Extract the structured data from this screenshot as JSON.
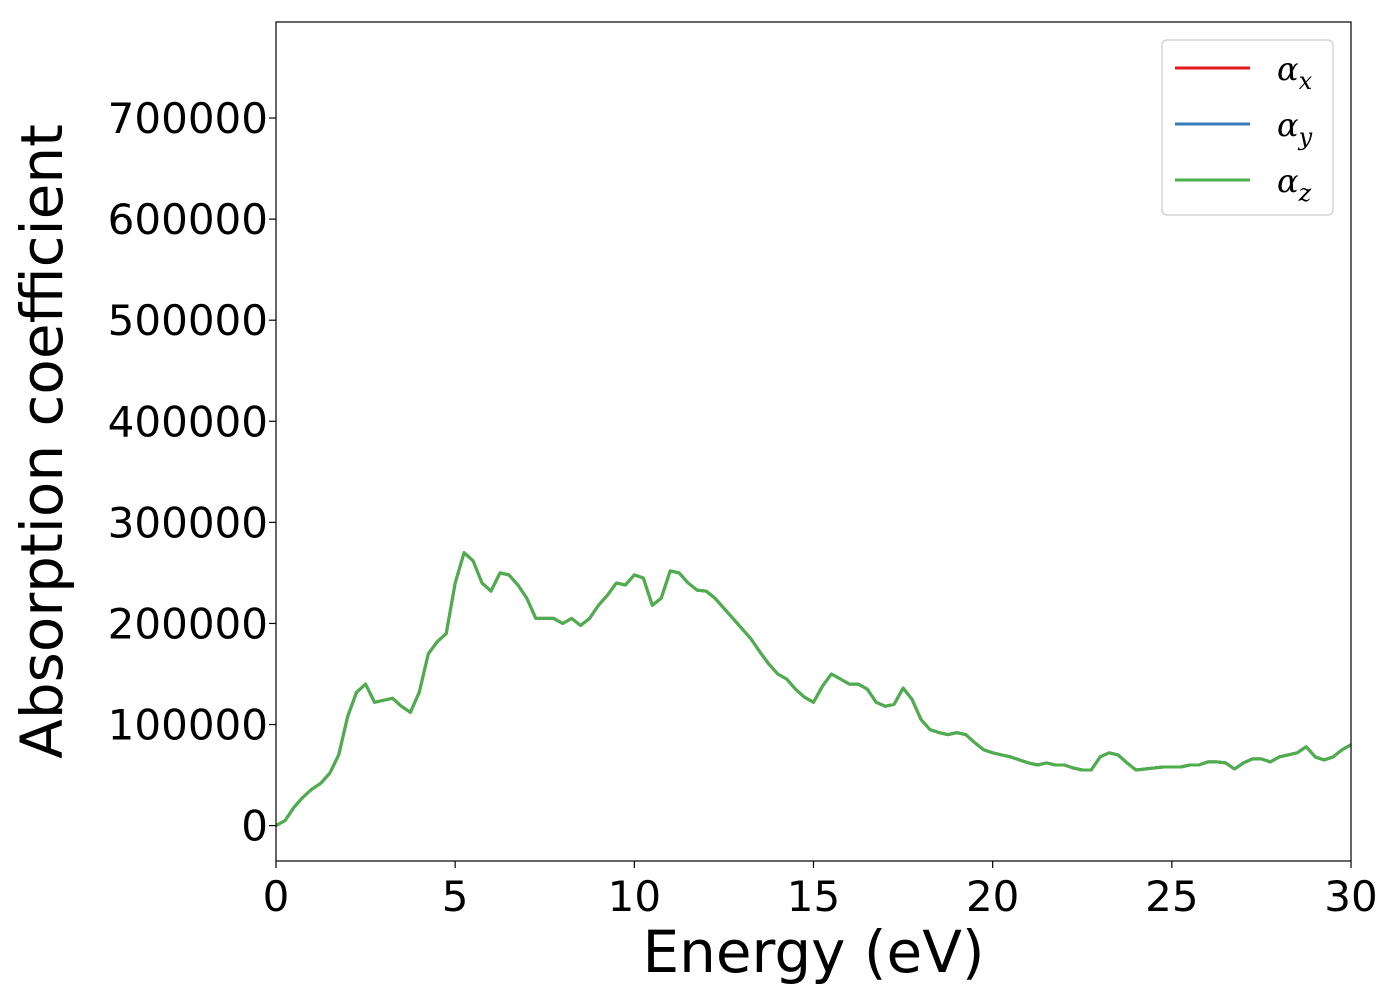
{
  "chart_data": {
    "type": "line",
    "title": "",
    "xlabel": "Energy (eV)",
    "ylabel": "Absorption coefficient",
    "xlim": [
      0,
      30
    ],
    "ylim": [
      -35000,
      795000
    ],
    "xticks": [
      0,
      5,
      10,
      15,
      20,
      25,
      30
    ],
    "yticks": [
      0,
      100000,
      200000,
      300000,
      400000,
      500000,
      600000,
      700000
    ],
    "grid": false,
    "legend_position": "top-right",
    "x": [
      0,
      0.25,
      0.5,
      0.75,
      1.0,
      1.25,
      1.5,
      1.75,
      2.0,
      2.25,
      2.5,
      2.75,
      3.0,
      3.25,
      3.5,
      3.75,
      4.0,
      4.25,
      4.5,
      4.75,
      5.0,
      5.25,
      5.5,
      5.75,
      6.0,
      6.25,
      6.5,
      6.75,
      7.0,
      7.25,
      7.5,
      7.75,
      8.0,
      8.25,
      8.5,
      8.75,
      9.0,
      9.25,
      9.5,
      9.75,
      10.0,
      10.25,
      10.5,
      10.75,
      11.0,
      11.25,
      11.5,
      11.75,
      12.0,
      12.25,
      12.5,
      12.75,
      13.0,
      13.25,
      13.5,
      13.75,
      14.0,
      14.25,
      14.5,
      14.75,
      15.0,
      15.25,
      15.5,
      15.75,
      16.0,
      16.25,
      16.5,
      16.75,
      17.0,
      17.25,
      17.5,
      17.75,
      18.0,
      18.25,
      18.5,
      18.75,
      19.0,
      19.25,
      19.5,
      19.75,
      20.0,
      20.25,
      20.5,
      20.75,
      21.0,
      21.25,
      21.5,
      21.75,
      22.0,
      22.25,
      22.5,
      22.75,
      23.0,
      23.25,
      23.5,
      23.75,
      24.0,
      24.25,
      24.5,
      24.75,
      25.0,
      25.25,
      25.5,
      25.75,
      26.0,
      26.25,
      26.5,
      26.75,
      27.0,
      27.25,
      27.5,
      27.75,
      28.0,
      28.25,
      28.5,
      28.75,
      29.0,
      29.25,
      29.5,
      29.75,
      30.0
    ],
    "series": [
      {
        "name": "α_x",
        "color": "#e41a1c",
        "values": [
          0,
          5000,
          18000,
          28000,
          36000,
          42000,
          52000,
          70000,
          108000,
          132000,
          140000,
          122000,
          124000,
          126000,
          118000,
          112000,
          132000,
          170000,
          182000,
          190000,
          240000,
          270000,
          262000,
          240000,
          232000,
          250000,
          248000,
          238000,
          225000,
          205000,
          205000,
          205000,
          200000,
          205000,
          198000,
          205000,
          218000,
          228000,
          240000,
          238000,
          248000,
          245000,
          218000,
          225000,
          252000,
          250000,
          240000,
          233000,
          232000,
          225000,
          215000,
          205000,
          195000,
          185000,
          172000,
          160000,
          150000,
          145000,
          135000,
          127000,
          122000,
          138000,
          150000,
          145000,
          140000,
          140000,
          135000,
          122000,
          118000,
          120000,
          136000,
          125000,
          105000,
          95000,
          92000,
          90000,
          92000,
          90000,
          82000,
          75000,
          72000,
          70000,
          68000,
          65000,
          62000,
          60000,
          62000,
          60000,
          60000,
          57000,
          55000,
          55000,
          68000,
          72000,
          70000,
          62000,
          55000,
          56000,
          57000,
          58000,
          58000,
          58000,
          60000,
          60000,
          63000,
          63000,
          62000,
          56000,
          62000,
          66000,
          66000,
          63000,
          68000,
          70000,
          72000,
          78000,
          68000,
          65000,
          68000,
          75000,
          80000
        ]
      },
      {
        "name": "α_y",
        "color": "#377eb8",
        "values": [
          0,
          5000,
          18000,
          28000,
          36000,
          42000,
          52000,
          70000,
          108000,
          132000,
          140000,
          122000,
          124000,
          126000,
          118000,
          112000,
          132000,
          170000,
          182000,
          190000,
          240000,
          270000,
          262000,
          240000,
          232000,
          250000,
          248000,
          238000,
          225000,
          205000,
          205000,
          205000,
          200000,
          205000,
          198000,
          205000,
          218000,
          228000,
          240000,
          238000,
          248000,
          245000,
          218000,
          225000,
          252000,
          250000,
          240000,
          233000,
          232000,
          225000,
          215000,
          205000,
          195000,
          185000,
          172000,
          160000,
          150000,
          145000,
          135000,
          127000,
          122000,
          138000,
          150000,
          145000,
          140000,
          140000,
          135000,
          122000,
          118000,
          120000,
          136000,
          125000,
          105000,
          95000,
          92000,
          90000,
          92000,
          90000,
          82000,
          75000,
          72000,
          70000,
          68000,
          65000,
          62000,
          60000,
          62000,
          60000,
          60000,
          57000,
          55000,
          55000,
          68000,
          72000,
          70000,
          62000,
          55000,
          56000,
          57000,
          58000,
          58000,
          58000,
          60000,
          60000,
          63000,
          63000,
          62000,
          56000,
          62000,
          66000,
          66000,
          63000,
          68000,
          70000,
          72000,
          78000,
          68000,
          65000,
          68000,
          75000,
          80000
        ]
      },
      {
        "name": "α_z",
        "color": "#4daf4a",
        "values": [
          0,
          5000,
          18000,
          28000,
          36000,
          42000,
          52000,
          70000,
          108000,
          132000,
          140000,
          122000,
          124000,
          126000,
          118000,
          112000,
          132000,
          170000,
          182000,
          190000,
          240000,
          270000,
          262000,
          240000,
          232000,
          250000,
          248000,
          238000,
          225000,
          205000,
          205000,
          205000,
          200000,
          205000,
          198000,
          205000,
          218000,
          228000,
          240000,
          238000,
          248000,
          245000,
          218000,
          225000,
          252000,
          250000,
          240000,
          233000,
          232000,
          225000,
          215000,
          205000,
          195000,
          185000,
          172000,
          160000,
          150000,
          145000,
          135000,
          127000,
          122000,
          138000,
          150000,
          145000,
          140000,
          140000,
          135000,
          122000,
          118000,
          120000,
          136000,
          125000,
          105000,
          95000,
          92000,
          90000,
          92000,
          90000,
          82000,
          75000,
          72000,
          70000,
          68000,
          65000,
          62000,
          60000,
          62000,
          60000,
          60000,
          57000,
          55000,
          55000,
          68000,
          72000,
          70000,
          62000,
          55000,
          56000,
          57000,
          58000,
          58000,
          58000,
          60000,
          60000,
          63000,
          63000,
          62000,
          56000,
          62000,
          66000,
          66000,
          63000,
          68000,
          70000,
          72000,
          78000,
          68000,
          65000,
          68000,
          75000,
          80000
        ]
      }
    ]
  }
}
